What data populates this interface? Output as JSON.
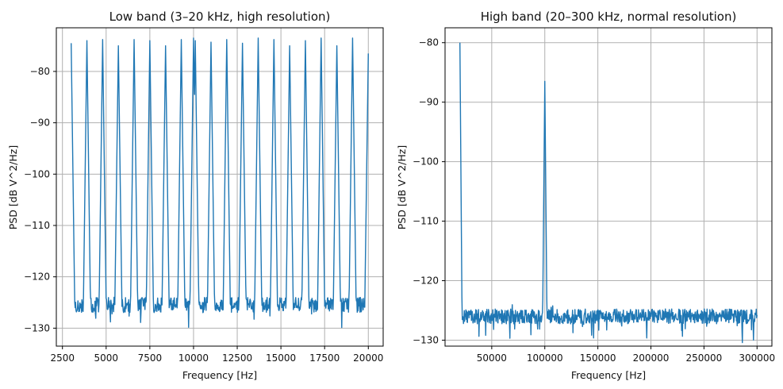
{
  "figure": {
    "background": "#ffffff",
    "line_color": "#1f77b4"
  },
  "chart_data": [
    {
      "type": "line",
      "title": "Low band (3–20 kHz, high resolution)",
      "xlabel": "Frequency [Hz]",
      "ylabel": "PSD [dB V^2/Hz]",
      "xlim": [
        2150,
        20850
      ],
      "ylim": [
        -133.5,
        -71.5
      ],
      "xticks": [
        2500,
        5000,
        7500,
        10000,
        12500,
        15000,
        17500,
        20000
      ],
      "xtick_labels": [
        "2500",
        "5000",
        "7500",
        "10000",
        "12500",
        "15000",
        "17500",
        "20000"
      ],
      "yticks": [
        -130,
        -120,
        -110,
        -100,
        -90,
        -80
      ],
      "ytick_labels": [
        "−130",
        "−120",
        "−110",
        "−100",
        "−90",
        "−80"
      ],
      "grid": true,
      "x_range": [
        3000,
        20000
      ],
      "noise_floor_db": -125.5,
      "noise_span_db": 3,
      "peak_width_hz": 45,
      "peaks": [
        {
          "f": 3000,
          "db": -74.5
        },
        {
          "f": 3900,
          "db": -74.0
        },
        {
          "f": 4800,
          "db": -73.8
        },
        {
          "f": 5700,
          "db": -75.0
        },
        {
          "f": 6600,
          "db": -73.8
        },
        {
          "f": 7500,
          "db": -74.0
        },
        {
          "f": 8400,
          "db": -75.0
        },
        {
          "f": 9300,
          "db": -73.8
        },
        {
          "f": 10000,
          "db": -73.5
        },
        {
          "f": 10100,
          "db": -74.0
        },
        {
          "f": 11000,
          "db": -74.3
        },
        {
          "f": 11900,
          "db": -73.8
        },
        {
          "f": 12800,
          "db": -74.5
        },
        {
          "f": 13700,
          "db": -73.5
        },
        {
          "f": 14600,
          "db": -73.8
        },
        {
          "f": 15500,
          "db": -75.0
        },
        {
          "f": 16400,
          "db": -74.0
        },
        {
          "f": 17300,
          "db": -73.5
        },
        {
          "f": 18200,
          "db": -75.0
        },
        {
          "f": 19100,
          "db": -73.5
        },
        {
          "f": 20000,
          "db": -76.5
        }
      ]
    },
    {
      "type": "line",
      "title": "High band (20–300 kHz, normal resolution)",
      "xlabel": "Frequency [Hz]",
      "ylabel": "PSD [dB V^2/Hz]",
      "xlim": [
        6000,
        314000
      ],
      "ylim": [
        -131,
        -77.5
      ],
      "xticks": [
        50000,
        100000,
        150000,
        200000,
        250000,
        300000
      ],
      "xtick_labels": [
        "50000",
        "100000",
        "150000",
        "200000",
        "250000",
        "300000"
      ],
      "yticks": [
        -130,
        -120,
        -110,
        -100,
        -90,
        -80
      ],
      "ytick_labels": [
        "−130",
        "−120",
        "−110",
        "−100",
        "−90",
        "−80"
      ],
      "grid": true,
      "x_range": [
        20000,
        300000
      ],
      "noise_floor_db": -126.0,
      "noise_span_db": 2.5,
      "peak_width_hz": 300,
      "peaks": [
        {
          "f": 20000,
          "db": -80.0
        },
        {
          "f": 100000,
          "db": -86.5
        }
      ]
    }
  ]
}
